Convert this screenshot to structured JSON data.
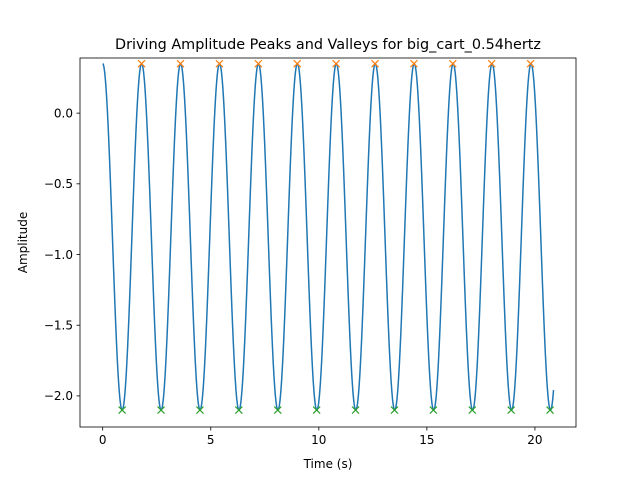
{
  "chart_data": {
    "type": "line",
    "title": "Driving Amplitude Peaks and Valleys for big_cart_0.54hertz",
    "xlabel": "Time (s)",
    "ylabel": "Amplitude",
    "xlim": [
      -1.05,
      21.9
    ],
    "ylim": [
      -2.22,
      0.39
    ],
    "xticks": [
      0,
      5,
      10,
      15,
      20
    ],
    "xtick_labels": [
      "0",
      "5",
      "10",
      "15",
      "20"
    ],
    "yticks": [
      0.0,
      -0.5,
      -1.0,
      -1.5,
      -2.0
    ],
    "ytick_labels": [
      "0.0",
      "−0.5",
      "−1.0",
      "−1.5",
      "−2.0"
    ],
    "grid": false,
    "signal": {
      "name": "amplitude",
      "t_start": 0.0,
      "t_end": 20.86,
      "frequency_hz": 0.555,
      "amplitude_max": 0.35,
      "amplitude_min": -2.1,
      "start_value": 0.35
    },
    "series": [
      {
        "name": "peaks",
        "marker": "x",
        "x": [
          1.8,
          3.6,
          5.4,
          7.2,
          9.0,
          10.8,
          12.6,
          14.4,
          16.2,
          18.0,
          19.8
        ],
        "y": [
          0.35,
          0.35,
          0.35,
          0.35,
          0.35,
          0.35,
          0.35,
          0.35,
          0.35,
          0.35,
          0.35
        ]
      },
      {
        "name": "valleys",
        "marker": "x",
        "x": [
          0.9,
          2.7,
          4.5,
          6.3,
          8.1,
          9.9,
          11.7,
          13.5,
          15.3,
          17.1,
          18.9,
          20.7
        ],
        "y": [
          -2.1,
          -2.1,
          -2.1,
          -2.1,
          -2.1,
          -2.1,
          -2.1,
          -2.1,
          -2.1,
          -2.1,
          -2.1,
          -2.1
        ]
      }
    ],
    "colors": {
      "line": "#1f77b4",
      "peaks": "#ff7f0e",
      "valleys": "#2ca02c",
      "axes": "#000000"
    }
  }
}
